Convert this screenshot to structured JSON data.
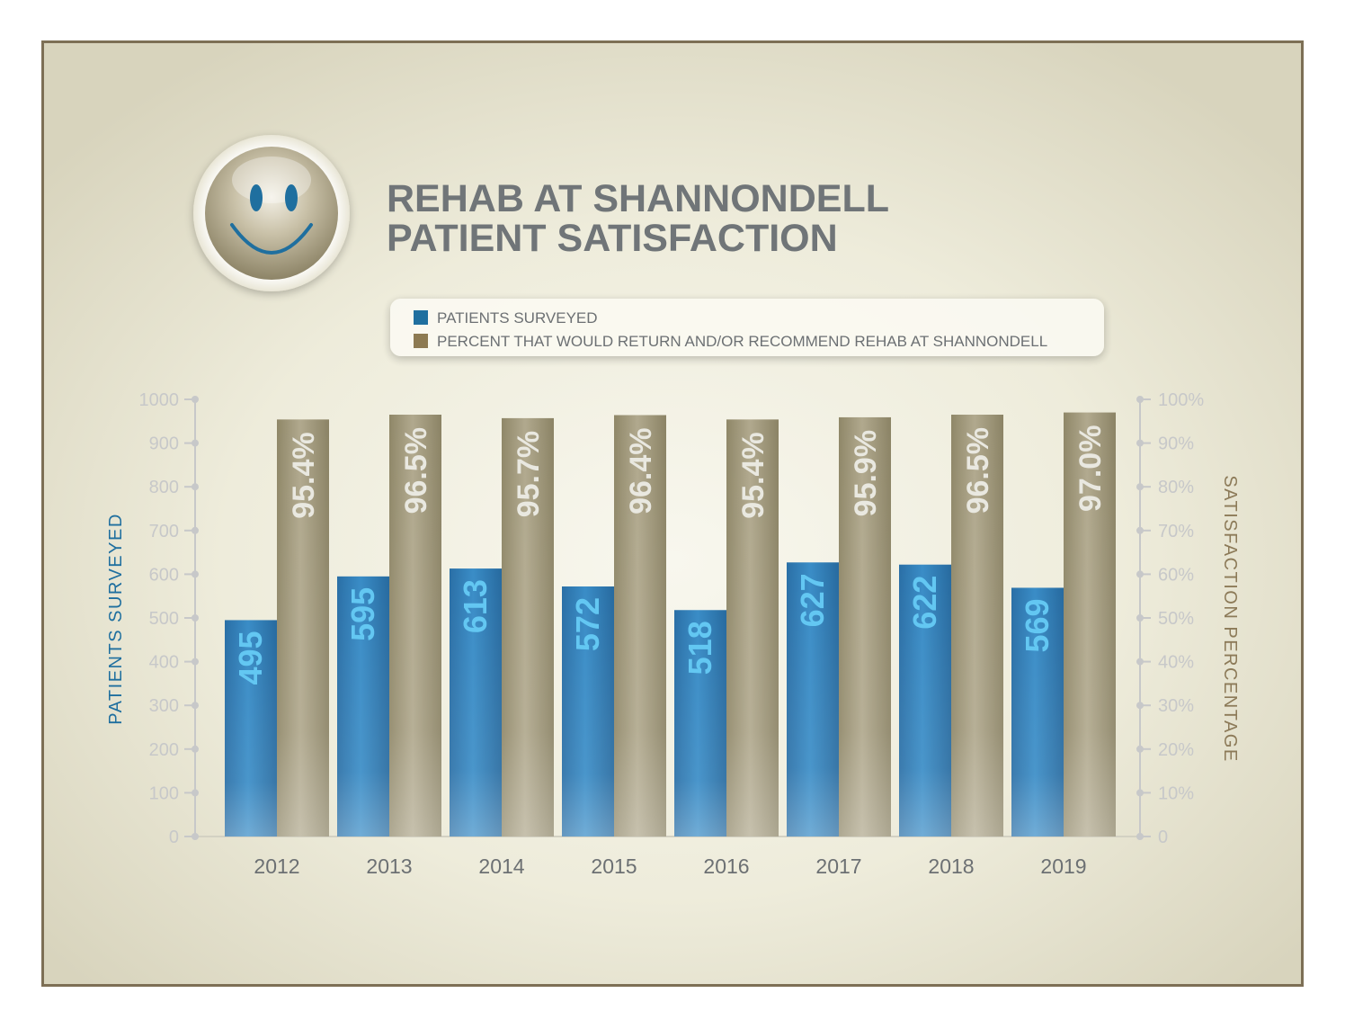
{
  "colors": {
    "blue": "#2f7fb8",
    "tan": "#a79f83",
    "title": "#707578",
    "axis_left_label": "#1f6f9f",
    "axis_right_label": "#8c7a58",
    "tick": "#c7c8c9",
    "year": "#6c7073",
    "frame": "#7d6f55",
    "blue_label": "#63c7f2",
    "tan_label": "#e9e8e0"
  },
  "header": {
    "icon": "smiley-face-icon",
    "title_line1": "REHAB AT SHANNONDELL",
    "title_line2": "PATIENT SATISFACTION"
  },
  "chart_data": {
    "type": "bar",
    "title": "REHAB AT SHANNONDELL PATIENT SATISFACTION",
    "categories": [
      "2012",
      "2013",
      "2014",
      "2015",
      "2016",
      "2017",
      "2018",
      "2019"
    ],
    "series": [
      {
        "name": "PATIENTS SURVEYED",
        "axis": "left",
        "values": [
          495,
          595,
          613,
          572,
          518,
          627,
          622,
          569
        ],
        "labels": [
          "495",
          "595",
          "613",
          "572",
          "518",
          "627",
          "622",
          "569"
        ]
      },
      {
        "name": "PERCENT THAT WOULD RETURN AND/OR RECOMMEND REHAB AT SHANNONDELL",
        "axis": "right",
        "values": [
          95.4,
          96.5,
          95.7,
          96.4,
          95.4,
          95.9,
          96.5,
          97.0
        ],
        "labels": [
          "95.4%",
          "96.5%",
          "95.7%",
          "96.4%",
          "95.4%",
          "95.9%",
          "96.5%",
          "97.0%"
        ]
      }
    ],
    "ylabel": "PATIENTS SURVEYED",
    "y2label": "SATISFACTION PERCENTAGE",
    "ylim": [
      0,
      1000
    ],
    "y2lim": [
      0,
      100
    ],
    "yticks": [
      "0",
      "100",
      "200",
      "300",
      "400",
      "500",
      "600",
      "700",
      "800",
      "900",
      "1000"
    ],
    "y2ticks": [
      "0",
      "10%",
      "20%",
      "30%",
      "40%",
      "50%",
      "60%",
      "70%",
      "80%",
      "90%",
      "100%"
    ],
    "legend_position": "top-center",
    "grid": false
  }
}
